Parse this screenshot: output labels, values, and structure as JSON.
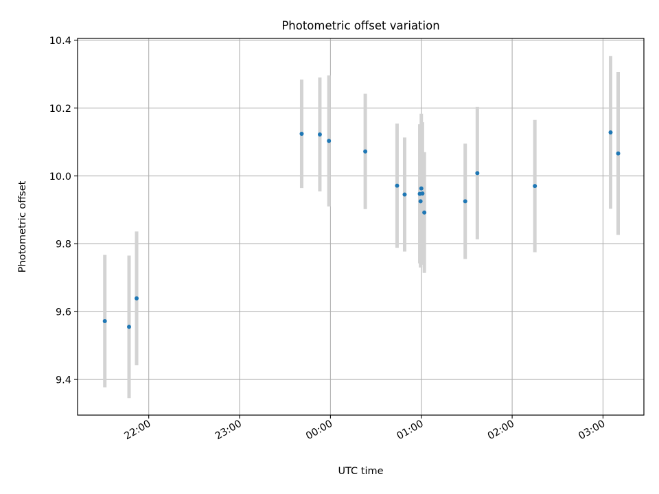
{
  "chart_data": {
    "type": "scatter",
    "title": "Photometric offset variation",
    "xlabel": "UTC time",
    "ylabel": "Photometric offset",
    "xlim": [
      "2023-01-01T21:13:00",
      "2023-01-02T03:27:00"
    ],
    "ylim": [
      9.295,
      10.405
    ],
    "x_ticks": [
      {
        "label": "22:00",
        "t": "2023-01-01T22:00:00"
      },
      {
        "label": "23:00",
        "t": "2023-01-01T23:00:00"
      },
      {
        "label": "00:00",
        "t": "2023-01-02T00:00:00"
      },
      {
        "label": "01:00",
        "t": "2023-01-02T01:00:00"
      },
      {
        "label": "02:00",
        "t": "2023-01-02T02:00:00"
      },
      {
        "label": "03:00",
        "t": "2023-01-02T03:00:00"
      }
    ],
    "y_ticks": [
      "9.4",
      "9.6",
      "9.8",
      "10.0",
      "10.2",
      "10.4"
    ],
    "grid": true,
    "errorbar_color": "#d3d3d3",
    "point_color": "#1f77b4",
    "points": [
      {
        "t": "2023-01-01T21:31:00",
        "y": 9.572,
        "err": 0.195
      },
      {
        "t": "2023-01-01T21:47:00",
        "y": 9.555,
        "err": 0.21
      },
      {
        "t": "2023-01-01T21:52:00",
        "y": 9.639,
        "err": 0.197
      },
      {
        "t": "2023-01-01T23:41:00",
        "y": 10.124,
        "err": 0.16
      },
      {
        "t": "2023-01-01T23:53:00",
        "y": 10.122,
        "err": 0.168
      },
      {
        "t": "2023-01-01T23:59:00",
        "y": 10.103,
        "err": 0.193
      },
      {
        "t": "2023-01-02T00:23:00",
        "y": 10.072,
        "err": 0.17
      },
      {
        "t": "2023-01-02T00:44:00",
        "y": 9.971,
        "err": 0.183
      },
      {
        "t": "2023-01-02T00:49:00",
        "y": 9.945,
        "err": 0.168
      },
      {
        "t": "2023-01-02T00:59:00",
        "y": 9.947,
        "err": 0.205
      },
      {
        "t": "2023-01-02T00:59:30",
        "y": 9.925,
        "err": 0.195
      },
      {
        "t": "2023-01-02T01:00:00",
        "y": 9.963,
        "err": 0.22
      },
      {
        "t": "2023-01-02T01:00:45",
        "y": 9.948,
        "err": 0.21
      },
      {
        "t": "2023-01-02T01:02:00",
        "y": 9.892,
        "err": 0.178
      },
      {
        "t": "2023-01-02T01:29:00",
        "y": 9.925,
        "err": 0.17
      },
      {
        "t": "2023-01-02T01:37:00",
        "y": 10.008,
        "err": 0.195
      },
      {
        "t": "2023-01-02T02:15:00",
        "y": 9.97,
        "err": 0.195
      },
      {
        "t": "2023-01-02T03:05:00",
        "y": 10.128,
        "err": 0.225
      },
      {
        "t": "2023-01-02T03:10:00",
        "y": 10.066,
        "err": 0.24
      }
    ]
  }
}
